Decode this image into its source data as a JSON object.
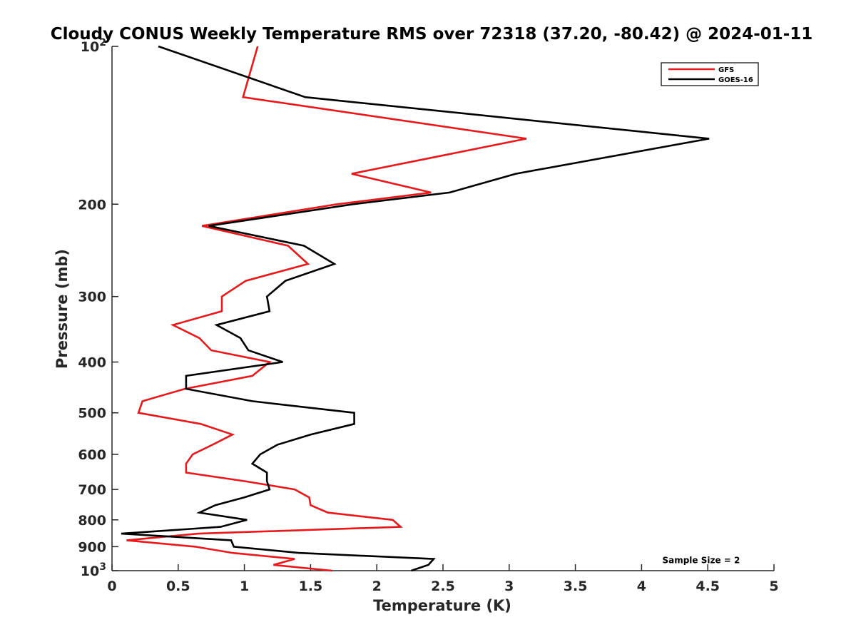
{
  "chart_data": {
    "type": "line",
    "title": "Cloudy CONUS Weekly Temperature RMS over 72318 (37.20, -80.42) @ 2024-01-11",
    "xlabel": "Temperature (K)",
    "ylabel": "Pressure (mb)",
    "xlim": [
      0,
      5
    ],
    "ylim": [
      100,
      1000
    ],
    "y_scale": "log",
    "y_reversed": true,
    "grid": false,
    "legend_position": "top-right",
    "x_ticks": [
      0,
      0.5,
      1,
      1.5,
      2,
      2.5,
      3,
      3.5,
      4,
      4.5,
      5
    ],
    "x_tick_labels": [
      "0",
      "0.5",
      "1",
      "1.5",
      "2",
      "2.5",
      "3",
      "3.5",
      "4",
      "4.5",
      "5"
    ],
    "y_ticks": [
      {
        "value": 100,
        "base": "10",
        "exp": "2"
      },
      {
        "value": 200,
        "label": "200"
      },
      {
        "value": 300,
        "label": "300"
      },
      {
        "value": 400,
        "label": "400"
      },
      {
        "value": 500,
        "label": "500"
      },
      {
        "value": 600,
        "label": "600"
      },
      {
        "value": 700,
        "label": "700"
      },
      {
        "value": 800,
        "label": "800"
      },
      {
        "value": 900,
        "label": "900"
      },
      {
        "value": 1000,
        "base": "10",
        "exp": "3"
      }
    ],
    "series": [
      {
        "name": "GFS",
        "color": "#e41a1c",
        "points": [
          [
            1.1,
            100
          ],
          [
            0.99,
            125
          ],
          [
            3.13,
            150
          ],
          [
            1.81,
            175
          ],
          [
            2.41,
            190
          ],
          [
            1.7,
            200
          ],
          [
            0.68,
            220
          ],
          [
            1.33,
            240
          ],
          [
            1.48,
            260
          ],
          [
            1.01,
            280
          ],
          [
            0.83,
            300
          ],
          [
            0.83,
            320
          ],
          [
            0.46,
            340
          ],
          [
            0.66,
            360
          ],
          [
            0.75,
            380
          ],
          [
            1.19,
            400
          ],
          [
            1.06,
            425
          ],
          [
            0.55,
            450
          ],
          [
            0.23,
            475
          ],
          [
            0.2,
            500
          ],
          [
            0.67,
            525
          ],
          [
            0.91,
            550
          ],
          [
            0.76,
            575
          ],
          [
            0.61,
            600
          ],
          [
            0.56,
            625
          ],
          [
            0.56,
            650
          ],
          [
            1.0,
            675
          ],
          [
            1.38,
            700
          ],
          [
            1.49,
            725
          ],
          [
            1.5,
            750
          ],
          [
            1.63,
            775
          ],
          [
            2.12,
            800
          ],
          [
            2.18,
            825
          ],
          [
            0.65,
            850
          ],
          [
            0.11,
            875
          ],
          [
            0.63,
            900
          ],
          [
            0.91,
            925
          ],
          [
            1.38,
            950
          ],
          [
            1.22,
            975
          ],
          [
            1.66,
            1000
          ]
        ]
      },
      {
        "name": "GOES-16",
        "color": "#000000",
        "points": [
          [
            0.35,
            100
          ],
          [
            1.46,
            125
          ],
          [
            4.51,
            150
          ],
          [
            3.05,
            175
          ],
          [
            2.55,
            190
          ],
          [
            1.82,
            200
          ],
          [
            0.73,
            220
          ],
          [
            1.45,
            240
          ],
          [
            1.68,
            260
          ],
          [
            1.31,
            280
          ],
          [
            1.17,
            300
          ],
          [
            1.19,
            320
          ],
          [
            0.79,
            340
          ],
          [
            0.97,
            360
          ],
          [
            1.03,
            380
          ],
          [
            1.29,
            400
          ],
          [
            0.56,
            425
          ],
          [
            0.56,
            450
          ],
          [
            1.06,
            475
          ],
          [
            1.83,
            500
          ],
          [
            1.83,
            525
          ],
          [
            1.5,
            550
          ],
          [
            1.25,
            575
          ],
          [
            1.12,
            600
          ],
          [
            1.06,
            625
          ],
          [
            1.17,
            650
          ],
          [
            1.17,
            675
          ],
          [
            1.19,
            700
          ],
          [
            1.0,
            725
          ],
          [
            0.78,
            750
          ],
          [
            0.66,
            775
          ],
          [
            1.02,
            800
          ],
          [
            0.82,
            825
          ],
          [
            0.07,
            850
          ],
          [
            0.9,
            875
          ],
          [
            0.92,
            900
          ],
          [
            1.41,
            925
          ],
          [
            2.43,
            950
          ],
          [
            2.39,
            975
          ],
          [
            2.26,
            1000
          ]
        ]
      }
    ],
    "annotations": [
      {
        "text": "Sample Size = 2",
        "x": 4.45,
        "y": 950
      }
    ]
  }
}
